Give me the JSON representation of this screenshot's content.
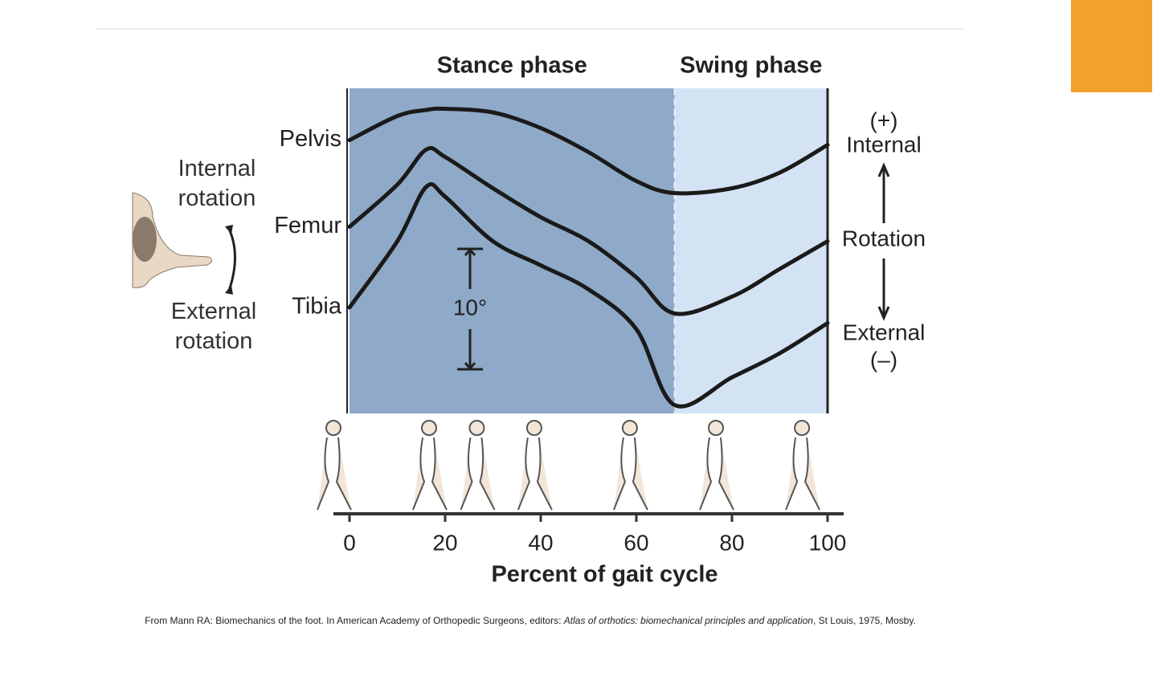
{
  "chart_data": {
    "type": "line",
    "x": [
      0,
      10,
      16,
      20,
      30,
      40,
      50,
      60,
      68,
      80,
      90,
      100
    ],
    "series": [
      {
        "name": "Pelvis",
        "color": "#1a1a1a",
        "values": [
          22.7,
          24.7,
          25.2,
          25.3,
          25,
          23.7,
          21.7,
          19.3,
          18.3,
          18.7,
          20,
          22.3
        ]
      },
      {
        "name": "Femur",
        "color": "#1a1a1a",
        "values": [
          15.5,
          19.0,
          21.9,
          21.3,
          18.7,
          16.3,
          14.3,
          11.3,
          8.3,
          9.7,
          12.0,
          14.3
        ]
      },
      {
        "name": "Tibia",
        "color": "#1a1a1a",
        "values": [
          8.8,
          14.3,
          18.8,
          18.0,
          14.3,
          12.3,
          10.3,
          7.0,
          0.7,
          3.0,
          5.0,
          7.5
        ]
      }
    ],
    "phases": [
      {
        "label": "Stance phase",
        "start": 0,
        "end": 68,
        "color": "#8fa9c8"
      },
      {
        "label": "Swing phase",
        "start": 68,
        "end": 100,
        "color": "#d3e3f3"
      }
    ],
    "xlim": [
      0,
      100
    ],
    "xticks": [
      0,
      20,
      40,
      60,
      80,
      100
    ],
    "ylim": [
      0,
      27
    ],
    "x_label": "Percent of gait cycle",
    "scale_bar": {
      "label": "10°",
      "value": 10
    },
    "direction_labels": [
      "(+)",
      "Internal",
      "Rotation",
      "External",
      "(–)"
    ],
    "rotation_labels": [
      "Internal rotation",
      "External rotation"
    ]
  },
  "citation": {
    "text": "From Mann RA: Biomechanics of the foot. In American Academy of Orthopedic Surgeons, editors: ",
    "italic": "Atlas of orthotics: biomechanical principles and application",
    "end": ", St Louis, 1975, Mosby."
  }
}
